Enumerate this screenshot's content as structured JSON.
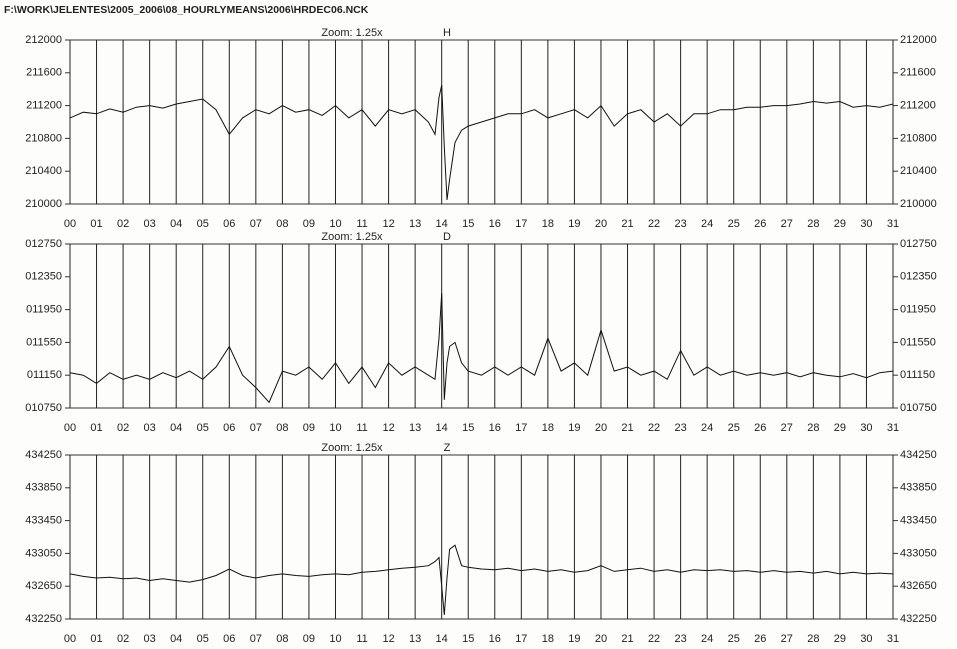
{
  "file_path": "F:\\WORK\\JELENTES\\2005_2006\\08_HOURLYMEANS\\2006\\HRDEC06.NCK",
  "chart_data": [
    {
      "type": "line",
      "title": "Zoom: 1.25x",
      "subtitle": "H",
      "grid": "x",
      "x": [
        0,
        0.5,
        1,
        1.5,
        2,
        2.5,
        3,
        3.5,
        4,
        4.5,
        5,
        5.5,
        6,
        6.5,
        7,
        7.5,
        8,
        8.5,
        9,
        9.5,
        10,
        10.5,
        11,
        11.5,
        12,
        12.5,
        13,
        13.5,
        13.75,
        13.9,
        14,
        14.1,
        14.2,
        14.3,
        14.5,
        14.75,
        15,
        15.5,
        16,
        16.5,
        17,
        17.5,
        18,
        18.5,
        19,
        19.5,
        20,
        20.5,
        21,
        21.5,
        22,
        22.5,
        23,
        23.5,
        24,
        24.5,
        25,
        25.5,
        26,
        26.5,
        27,
        27.5,
        28,
        28.5,
        29,
        29.5,
        30,
        30.5,
        31
      ],
      "series": [
        {
          "color": "#111111",
          "values": [
            211050,
            211120,
            211100,
            211160,
            211120,
            211180,
            211200,
            211170,
            211220,
            211250,
            211280,
            211150,
            210850,
            211050,
            211150,
            211100,
            211200,
            211120,
            211150,
            211080,
            211200,
            211050,
            211150,
            210950,
            211150,
            211100,
            211150,
            211000,
            210850,
            211300,
            211450,
            210700,
            210050,
            210300,
            210750,
            210900,
            210950,
            211000,
            211050,
            211100,
            211100,
            211150,
            211050,
            211100,
            211150,
            211050,
            211200,
            210950,
            211100,
            211150,
            211000,
            211100,
            210950,
            211100,
            211100,
            211150,
            211150,
            211180,
            211180,
            211200,
            211200,
            211220,
            211250,
            211230,
            211250,
            211180,
            211200,
            211180,
            211220
          ]
        }
      ],
      "xlim": [
        0,
        31
      ],
      "xticks": [
        {
          "value": 0,
          "label": "00"
        },
        {
          "value": 1,
          "label": "01"
        },
        {
          "value": 2,
          "label": "02"
        },
        {
          "value": 3,
          "label": "03"
        },
        {
          "value": 4,
          "label": "04"
        },
        {
          "value": 5,
          "label": "05"
        },
        {
          "value": 6,
          "label": "06"
        },
        {
          "value": 7,
          "label": "07"
        },
        {
          "value": 8,
          "label": "08"
        },
        {
          "value": 9,
          "label": "09"
        },
        10,
        11,
        12,
        13,
        14,
        15,
        16,
        17,
        18,
        19,
        20,
        21,
        22,
        23,
        24,
        25,
        26,
        27,
        28,
        29,
        30,
        31
      ],
      "ylim": [
        210000,
        212000
      ],
      "yticks": [
        210000,
        210400,
        210800,
        211200,
        211600,
        212000
      ]
    },
    {
      "type": "line",
      "title": "Zoom: 1.25x",
      "subtitle": "D",
      "grid": "x",
      "x": [
        0,
        0.5,
        1,
        1.5,
        2,
        2.5,
        3,
        3.5,
        4,
        4.5,
        5,
        5.5,
        6,
        6.5,
        7,
        7.5,
        8,
        8.5,
        9,
        9.5,
        10,
        10.5,
        11,
        11.5,
        12,
        12.5,
        13,
        13.5,
        13.75,
        13.9,
        14,
        14.1,
        14.2,
        14.3,
        14.5,
        14.75,
        15,
        15.5,
        16,
        16.5,
        17,
        17.5,
        18,
        18.5,
        19,
        19.5,
        20,
        20.5,
        21,
        21.5,
        22,
        22.5,
        23,
        23.5,
        24,
        24.5,
        25,
        25.5,
        26,
        26.5,
        27,
        27.5,
        28,
        28.5,
        29,
        29.5,
        30,
        30.5,
        31
      ],
      "series": [
        {
          "color": "#111111",
          "values": [
            11180,
            11150,
            11050,
            11180,
            11100,
            11150,
            11100,
            11180,
            11120,
            11200,
            11100,
            11250,
            11500,
            11150,
            11000,
            10820,
            11200,
            11150,
            11250,
            11100,
            11300,
            11050,
            11250,
            11000,
            11300,
            11150,
            11250,
            11150,
            11100,
            11600,
            12150,
            10850,
            11300,
            11500,
            11550,
            11300,
            11200,
            11150,
            11250,
            11150,
            11250,
            11150,
            11600,
            11200,
            11300,
            11150,
            11700,
            11200,
            11250,
            11150,
            11200,
            11100,
            11450,
            11150,
            11250,
            11150,
            11200,
            11150,
            11180,
            11150,
            11180,
            11130,
            11180,
            11150,
            11130,
            11170,
            11120,
            11180,
            11200
          ]
        }
      ],
      "xlim": [
        0,
        31
      ],
      "xticks": [
        {
          "value": 0,
          "label": "00"
        },
        {
          "value": 1,
          "label": "01"
        },
        {
          "value": 2,
          "label": "02"
        },
        {
          "value": 3,
          "label": "03"
        },
        {
          "value": 4,
          "label": "04"
        },
        {
          "value": 5,
          "label": "05"
        },
        {
          "value": 6,
          "label": "06"
        },
        {
          "value": 7,
          "label": "07"
        },
        {
          "value": 8,
          "label": "08"
        },
        {
          "value": 9,
          "label": "09"
        },
        10,
        11,
        12,
        13,
        14,
        15,
        16,
        17,
        18,
        19,
        20,
        21,
        22,
        23,
        24,
        25,
        26,
        27,
        28,
        29,
        30,
        31
      ],
      "ylim": [
        10750,
        12750
      ],
      "yticks": [
        {
          "value": 10750,
          "label": "010750"
        },
        {
          "value": 11150,
          "label": "011150"
        },
        {
          "value": 11550,
          "label": "011550"
        },
        {
          "value": 11950,
          "label": "011950"
        },
        {
          "value": 12350,
          "label": "012350"
        },
        {
          "value": 12750,
          "label": "012750"
        }
      ]
    },
    {
      "type": "line",
      "title": "Zoom: 1.25x",
      "subtitle": "Z",
      "grid": "x",
      "x": [
        0,
        0.5,
        1,
        1.5,
        2,
        2.5,
        3,
        3.5,
        4,
        4.5,
        5,
        5.5,
        6,
        6.5,
        7,
        7.5,
        8,
        8.5,
        9,
        9.5,
        10,
        10.5,
        11,
        11.5,
        12,
        12.5,
        13,
        13.5,
        13.75,
        13.9,
        14,
        14.1,
        14.2,
        14.3,
        14.5,
        14.75,
        15,
        15.5,
        16,
        16.5,
        17,
        17.5,
        18,
        18.5,
        19,
        19.5,
        20,
        20.5,
        21,
        21.5,
        22,
        22.5,
        23,
        23.5,
        24,
        24.5,
        25,
        25.5,
        26,
        26.5,
        27,
        27.5,
        28,
        28.5,
        29,
        29.5,
        30,
        30.5,
        31
      ],
      "series": [
        {
          "color": "#111111",
          "values": [
            432800,
            432770,
            432750,
            432760,
            432740,
            432750,
            432720,
            432740,
            432720,
            432700,
            432730,
            432780,
            432860,
            432780,
            432750,
            432780,
            432800,
            432780,
            432770,
            432790,
            432800,
            432790,
            432820,
            432830,
            432850,
            432870,
            432880,
            432900,
            432950,
            433000,
            432650,
            432300,
            432750,
            433100,
            433150,
            432900,
            432880,
            432860,
            432850,
            432870,
            432840,
            432860,
            432830,
            432850,
            432820,
            432840,
            432900,
            432830,
            432850,
            432870,
            432830,
            432850,
            432820,
            432850,
            432840,
            432850,
            432830,
            432840,
            432820,
            432840,
            432820,
            432830,
            432810,
            432830,
            432800,
            432820,
            432800,
            432810,
            432800
          ]
        }
      ],
      "xlim": [
        0,
        31
      ],
      "xticks": [
        {
          "value": 0,
          "label": "00"
        },
        {
          "value": 1,
          "label": "01"
        },
        {
          "value": 2,
          "label": "02"
        },
        {
          "value": 3,
          "label": "03"
        },
        {
          "value": 4,
          "label": "04"
        },
        {
          "value": 5,
          "label": "05"
        },
        {
          "value": 6,
          "label": "06"
        },
        {
          "value": 7,
          "label": "07"
        },
        {
          "value": 8,
          "label": "08"
        },
        {
          "value": 9,
          "label": "09"
        },
        10,
        11,
        12,
        13,
        14,
        15,
        16,
        17,
        18,
        19,
        20,
        21,
        22,
        23,
        24,
        25,
        26,
        27,
        28,
        29,
        30,
        31
      ],
      "ylim": [
        432250,
        434250
      ],
      "yticks": [
        432250,
        432650,
        433050,
        433450,
        433850,
        434250
      ]
    }
  ]
}
